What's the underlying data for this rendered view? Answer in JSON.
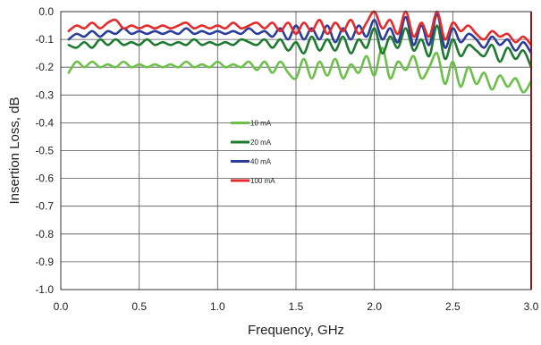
{
  "chart_data": {
    "type": "line",
    "xlabel": "Frequency, GHz",
    "ylabel": "Insertion Loss, dB",
    "xlim": [
      0.0,
      3.0
    ],
    "ylim": [
      -1.0,
      0.0
    ],
    "xticks": [
      "0.0",
      "0.5",
      "1.0",
      "1.5",
      "2.0",
      "2.5",
      "3.0"
    ],
    "yticks": [
      "0.0",
      "-0.1",
      "-0.2",
      "-0.3",
      "-0.4",
      "-0.5",
      "-0.6",
      "-0.7",
      "-0.8",
      "-0.9",
      "-1.0"
    ],
    "grid": true,
    "legend_position": "center",
    "x": [
      0.05,
      0.1,
      0.15,
      0.2,
      0.25,
      0.3,
      0.35,
      0.4,
      0.45,
      0.5,
      0.55,
      0.6,
      0.65,
      0.7,
      0.75,
      0.8,
      0.85,
      0.9,
      0.95,
      1.0,
      1.05,
      1.1,
      1.15,
      1.2,
      1.25,
      1.3,
      1.35,
      1.4,
      1.45,
      1.5,
      1.55,
      1.6,
      1.65,
      1.7,
      1.75,
      1.8,
      1.85,
      1.9,
      1.95,
      2.0,
      2.05,
      2.1,
      2.15,
      2.2,
      2.25,
      2.3,
      2.35,
      2.4,
      2.45,
      2.5,
      2.55,
      2.6,
      2.65,
      2.7,
      2.75,
      2.8,
      2.85,
      2.9,
      2.95,
      3.0
    ],
    "series": [
      {
        "name": "10 mA",
        "color": "#6cc04a",
        "values": [
          -0.22,
          -0.18,
          -0.2,
          -0.18,
          -0.2,
          -0.19,
          -0.2,
          -0.18,
          -0.2,
          -0.19,
          -0.2,
          -0.19,
          -0.2,
          -0.19,
          -0.2,
          -0.18,
          -0.2,
          -0.19,
          -0.2,
          -0.18,
          -0.2,
          -0.19,
          -0.2,
          -0.18,
          -0.21,
          -0.18,
          -0.22,
          -0.18,
          -0.22,
          -0.24,
          -0.17,
          -0.24,
          -0.18,
          -0.23,
          -0.17,
          -0.24,
          -0.19,
          -0.22,
          -0.16,
          -0.23,
          -0.13,
          -0.24,
          -0.18,
          -0.21,
          -0.16,
          -0.24,
          -0.2,
          -0.15,
          -0.26,
          -0.18,
          -0.27,
          -0.2,
          -0.26,
          -0.22,
          -0.28,
          -0.23,
          -0.27,
          -0.24,
          -0.29,
          -0.25
        ]
      },
      {
        "name": "20 mA",
        "color": "#1e7a2e",
        "values": [
          -0.12,
          -0.13,
          -0.11,
          -0.13,
          -0.1,
          -0.12,
          -0.1,
          -0.12,
          -0.11,
          -0.12,
          -0.1,
          -0.12,
          -0.11,
          -0.12,
          -0.11,
          -0.12,
          -0.1,
          -0.12,
          -0.11,
          -0.12,
          -0.11,
          -0.12,
          -0.1,
          -0.11,
          -0.12,
          -0.1,
          -0.13,
          -0.1,
          -0.14,
          -0.11,
          -0.15,
          -0.09,
          -0.14,
          -0.1,
          -0.14,
          -0.09,
          -0.15,
          -0.1,
          -0.13,
          -0.06,
          -0.15,
          -0.09,
          -0.13,
          -0.06,
          -0.14,
          -0.1,
          -0.16,
          -0.05,
          -0.17,
          -0.1,
          -0.16,
          -0.12,
          -0.14,
          -0.16,
          -0.12,
          -0.18,
          -0.13,
          -0.17,
          -0.14,
          -0.2
        ]
      },
      {
        "name": "40 mA",
        "color": "#2b3d99",
        "values": [
          -0.1,
          -0.08,
          -0.09,
          -0.07,
          -0.09,
          -0.07,
          -0.08,
          -0.06,
          -0.08,
          -0.07,
          -0.08,
          -0.07,
          -0.08,
          -0.07,
          -0.08,
          -0.06,
          -0.08,
          -0.07,
          -0.08,
          -0.07,
          -0.08,
          -0.07,
          -0.08,
          -0.06,
          -0.08,
          -0.07,
          -0.09,
          -0.06,
          -0.1,
          -0.05,
          -0.1,
          -0.06,
          -0.1,
          -0.05,
          -0.11,
          -0.06,
          -0.1,
          -0.05,
          -0.09,
          -0.03,
          -0.1,
          -0.06,
          -0.11,
          -0.02,
          -0.12,
          -0.05,
          -0.12,
          -0.01,
          -0.13,
          -0.06,
          -0.11,
          -0.08,
          -0.1,
          -0.13,
          -0.09,
          -0.12,
          -0.1,
          -0.14,
          -0.11,
          -0.15
        ]
      },
      {
        "name": "100 mA",
        "color": "#e42b2b",
        "values": [
          -0.07,
          -0.05,
          -0.06,
          -0.04,
          -0.06,
          -0.04,
          -0.03,
          -0.06,
          -0.05,
          -0.06,
          -0.05,
          -0.06,
          -0.05,
          -0.06,
          -0.05,
          -0.04,
          -0.06,
          -0.05,
          -0.06,
          -0.05,
          -0.06,
          -0.04,
          -0.06,
          -0.05,
          -0.04,
          -0.06,
          -0.04,
          -0.07,
          -0.04,
          -0.08,
          -0.04,
          -0.07,
          -0.03,
          -0.08,
          -0.04,
          -0.07,
          -0.03,
          -0.08,
          -0.04,
          0.0,
          -0.06,
          -0.03,
          -0.08,
          0.0,
          -0.09,
          -0.04,
          -0.09,
          0.0,
          -0.1,
          -0.04,
          -0.07,
          -0.05,
          -0.08,
          -0.1,
          -0.07,
          -0.09,
          -0.08,
          -0.11,
          -0.09,
          -0.12
        ]
      }
    ]
  }
}
